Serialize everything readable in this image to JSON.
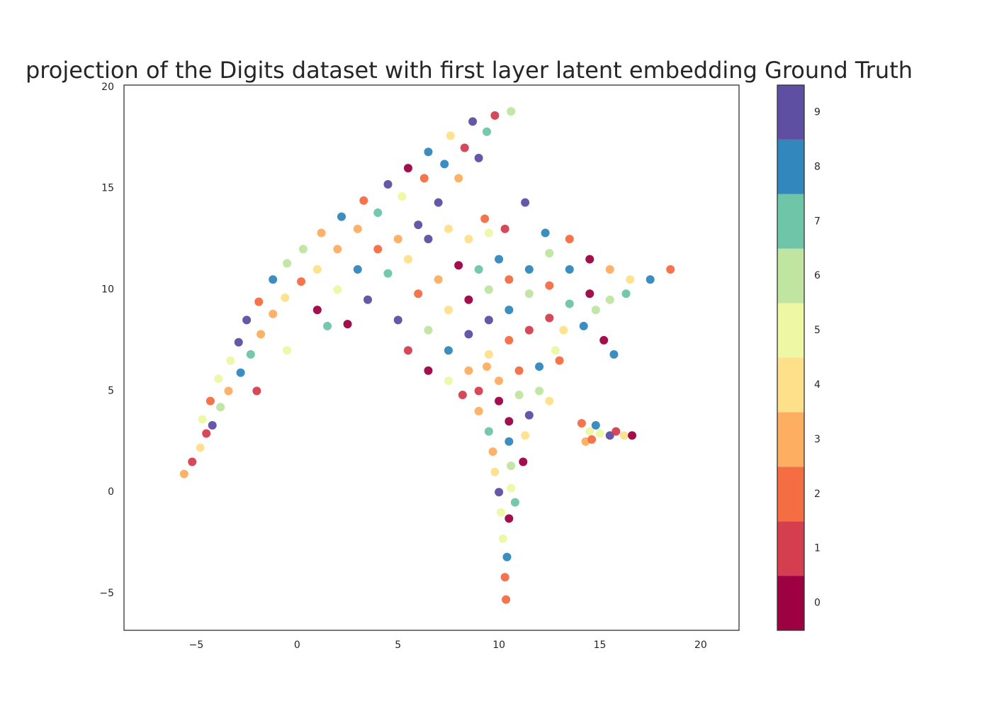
{
  "chart_data": {
    "type": "scatter",
    "title": "projection of the Digits dataset with first layer latent embedding Ground Truth",
    "xlim": [
      -8.58,
      21.9
    ],
    "ylim": [
      -6.82,
      20.1
    ],
    "xticks": [
      {
        "value": -5,
        "label": "−5"
      },
      0,
      5,
      10,
      15,
      20
    ],
    "yticks": [
      {
        "value": -5,
        "label": "−5"
      },
      0,
      5,
      10,
      15,
      20
    ],
    "x": [
      -5.6,
      -5.2,
      -4.8,
      -4.5,
      -4.7,
      -4.2,
      -4.3,
      -3.8,
      -3.9,
      -3.4,
      -3.3,
      -2.8,
      -2.9,
      -2.3,
      -2.5,
      -1.8,
      -1.9,
      -1.2,
      -1.2,
      -0.6,
      -0.5,
      0.2,
      0.3,
      1.0,
      1.2,
      2.0,
      2.2,
      3.0,
      3.3,
      4.0,
      4.5,
      5.2,
      5.5,
      6.3,
      6.5,
      7.3,
      7.6,
      8.3,
      8.7,
      9.4,
      9.8,
      10.6,
      9.0,
      8.0,
      7.0,
      6.0,
      5.0,
      1.5,
      -0.5,
      -2.0,
      1,
      2,
      3,
      4,
      2.5,
      3.5,
      4.5,
      5.5,
      6.5,
      7.5,
      8.5,
      9.5,
      5,
      6,
      7,
      8,
      9,
      10,
      5.5,
      6.5,
      7.5,
      8.5,
      9.5,
      10.5,
      11.5,
      12.5,
      13.5,
      6.5,
      7.5,
      8.5,
      9.5,
      10.5,
      11.5,
      12.5,
      13.5,
      14.5,
      15.5,
      16.5,
      17.5,
      18.5,
      7.5,
      8.5,
      9.5,
      10.5,
      11.5,
      12.5,
      13.5,
      14.5,
      15.5,
      16.3,
      11.3,
      12.3,
      9.3,
      10.3,
      13.2,
      14.2,
      15.2,
      15.7,
      14.8,
      12.8,
      9,
      10,
      11,
      12,
      13,
      9,
      10,
      11,
      12,
      12.5,
      9.5,
      10.5,
      11.5,
      9.7,
      10.5,
      11.3,
      9.8,
      10.6,
      11.2,
      10,
      10.6,
      10.1,
      10.5,
      10.2,
      10.4,
      10.3,
      10.35,
      9.4,
      8.2,
      10.8,
      14.1,
      14.5,
      14.3,
      15.0,
      15.5,
      16.2,
      16.6,
      14.8,
      15.8,
      14.6
    ],
    "y": [
      0.9,
      1.5,
      2.2,
      2.9,
      3.6,
      3.3,
      4.5,
      4.2,
      5.6,
      5.0,
      6.5,
      5.9,
      7.4,
      6.8,
      8.5,
      7.8,
      9.4,
      8.8,
      10.5,
      9.6,
      11.3,
      10.4,
      12.0,
      11.0,
      12.8,
      12.0,
      13.6,
      13.0,
      14.4,
      13.8,
      15.2,
      14.6,
      16.0,
      15.5,
      16.8,
      16.2,
      17.6,
      17.0,
      18.3,
      17.8,
      18.6,
      18.8,
      16.5,
      15.5,
      14.3,
      13.2,
      12.5,
      8.2,
      7.0,
      5.0,
      9,
      10,
      11,
      12,
      8.3,
      9.5,
      10.8,
      11.5,
      12.5,
      13,
      12.5,
      12.8,
      8.5,
      9.8,
      10.5,
      11.2,
      11,
      11.5,
      7,
      8,
      9,
      9.5,
      10,
      10.5,
      11,
      11.8,
      12.5,
      6,
      7,
      7.8,
      8.5,
      9,
      9.8,
      10.2,
      11,
      11.5,
      11,
      10.5,
      10.5,
      11,
      5.5,
      6,
      6.8,
      7.5,
      8,
      8.6,
      9.3,
      9.8,
      9.5,
      9.8,
      14.3,
      12.8,
      13.5,
      13.0,
      8,
      8.2,
      7.5,
      6.8,
      9,
      7,
      5,
      5.5,
      6,
      6.2,
      6.5,
      4,
      4.5,
      4.8,
      5,
      4.5,
      3,
      3.5,
      3.8,
      2,
      2.5,
      2.8,
      1,
      1.3,
      1.5,
      0,
      0.2,
      -1,
      -1.3,
      -2.3,
      -3.2,
      -4.2,
      -5.3,
      6.2,
      4.8,
      -0.5,
      3.4,
      3.0,
      2.5,
      2.9,
      2.8,
      2.8,
      2.8,
      3.3,
      3.0,
      2.6
    ],
    "c": [
      3,
      1,
      4,
      1,
      5,
      9,
      2,
      6,
      5,
      3,
      5,
      8,
      9,
      7,
      9,
      3,
      2,
      3,
      8,
      4,
      6,
      2,
      6,
      4,
      3,
      3,
      8,
      3,
      2,
      7,
      9,
      5,
      0,
      2,
      8,
      8,
      4,
      1,
      9,
      7,
      1,
      6,
      9,
      3,
      9,
      9,
      3,
      7,
      5,
      1,
      0,
      5,
      8,
      2,
      0,
      9,
      7,
      4,
      9,
      4,
      4,
      5,
      9,
      2,
      3,
      0,
      7,
      8,
      1,
      6,
      4,
      0,
      6,
      2,
      8,
      6,
      2,
      0,
      8,
      9,
      9,
      8,
      6,
      2,
      8,
      0,
      3,
      4,
      8,
      2,
      5,
      3,
      4,
      2,
      1,
      1,
      7,
      0,
      6,
      7,
      9,
      8,
      2,
      1,
      4,
      8,
      0,
      8,
      6,
      5,
      1,
      3,
      2,
      8,
      2,
      3,
      0,
      6,
      6,
      4,
      7,
      0,
      9,
      3,
      8,
      4,
      4,
      6,
      0,
      9,
      5,
      5,
      0,
      5,
      8,
      2,
      2,
      3,
      1,
      7,
      2,
      5,
      3,
      5,
      9,
      4,
      0,
      8,
      1,
      2
    ],
    "colorbar": {
      "lim": [
        -0.5,
        9.5
      ],
      "ticks": [
        0,
        1,
        2,
        3,
        4,
        5,
        6,
        7,
        8,
        9
      ],
      "colors": [
        "#9e0142",
        "#d53e4f",
        "#f46d43",
        "#fdae61",
        "#fee08b",
        "#eef7a3",
        "#bfe5a0",
        "#6fc5a8",
        "#3288bd",
        "#5e4fa2"
      ]
    }
  }
}
